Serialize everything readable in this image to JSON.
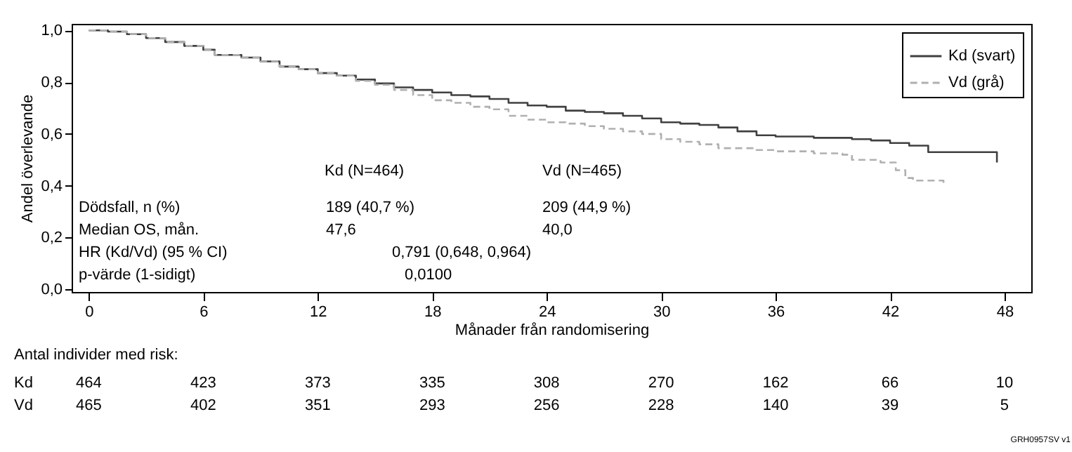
{
  "chart_data": {
    "type": "step",
    "xlabel": "Månader från randomisering",
    "ylabel": "Andel överlevande",
    "xlim": [
      -0.9,
      49.4
    ],
    "xticks": [
      0,
      6,
      12,
      18,
      24,
      30,
      36,
      42,
      48
    ],
    "ylim": [
      -0.01,
      1.025
    ],
    "yticks": [
      {
        "value": 0,
        "label": "0,0"
      },
      {
        "value": 0.2,
        "label": "0,2"
      },
      {
        "value": 0.4,
        "label": "0,4"
      },
      {
        "value": 0.6,
        "label": "0,6"
      },
      {
        "value": 0.8,
        "label": "0,8"
      },
      {
        "value": 1,
        "label": "1,0"
      }
    ],
    "legend": "top right",
    "grid": false,
    "series": [
      {
        "name": "Kd (svart)",
        "color": "#404040",
        "line_style": "solid",
        "x": [
          0,
          1,
          2,
          3,
          4,
          5,
          6,
          6.6,
          8,
          9,
          10,
          11,
          12,
          13,
          14,
          15,
          16,
          17,
          18,
          19,
          20,
          21,
          22,
          23,
          24,
          25,
          26,
          27,
          28,
          29,
          30,
          31,
          32,
          33,
          34,
          35,
          36,
          38,
          40,
          41,
          42,
          43,
          44,
          47.6
        ],
        "values": [
          1.0,
          0.995,
          0.985,
          0.97,
          0.955,
          0.94,
          0.925,
          0.905,
          0.895,
          0.88,
          0.86,
          0.85,
          0.835,
          0.825,
          0.81,
          0.795,
          0.78,
          0.77,
          0.76,
          0.75,
          0.745,
          0.735,
          0.72,
          0.71,
          0.705,
          0.69,
          0.685,
          0.68,
          0.67,
          0.66,
          0.645,
          0.64,
          0.635,
          0.625,
          0.61,
          0.595,
          0.59,
          0.585,
          0.58,
          0.575,
          0.565,
          0.555,
          0.53,
          0.49
        ]
      },
      {
        "name": "Vd (grå)",
        "color": "#b0b0b0",
        "line_style": "dashed",
        "x": [
          0,
          1,
          2,
          3,
          4,
          5,
          6,
          6.6,
          8,
          9,
          10,
          11,
          12,
          13,
          14,
          15,
          16,
          17,
          18,
          19,
          20,
          21,
          22,
          23,
          24,
          25,
          26,
          27,
          28,
          29,
          30,
          31,
          32,
          33,
          35,
          36,
          38,
          39.5,
          40,
          41.5,
          42.3,
          42.8,
          43.2,
          44.8
        ],
        "values": [
          1.0,
          0.995,
          0.985,
          0.97,
          0.955,
          0.94,
          0.925,
          0.905,
          0.895,
          0.88,
          0.86,
          0.85,
          0.835,
          0.825,
          0.805,
          0.79,
          0.77,
          0.75,
          0.73,
          0.72,
          0.705,
          0.695,
          0.67,
          0.655,
          0.645,
          0.64,
          0.63,
          0.62,
          0.61,
          0.6,
          0.58,
          0.57,
          0.56,
          0.545,
          0.538,
          0.533,
          0.525,
          0.52,
          0.5,
          0.49,
          0.46,
          0.43,
          0.42,
          0.41
        ]
      }
    ],
    "annotations": [
      "Kd (N=464)",
      "Vd (N=465)",
      "Dödsfall, n (%)",
      "189 (40,7 %)",
      "209 (44,9 %)",
      "Median OS, mån.",
      "47,6",
      "40,0",
      "HR (Kd/Vd) (95 % CI)",
      "0,791 (0,648, 0,964)",
      "p-värde (1-sidigt)",
      "0,0100",
      "Antal individer med risk:",
      "Kd",
      "464",
      "423",
      "373",
      "335",
      "308",
      "270",
      "162",
      "66",
      "10",
      "Vd",
      "465",
      "402",
      "351",
      "293",
      "256",
      "228",
      "140",
      "39",
      "5",
      "GRH0957SV v1"
    ]
  }
}
